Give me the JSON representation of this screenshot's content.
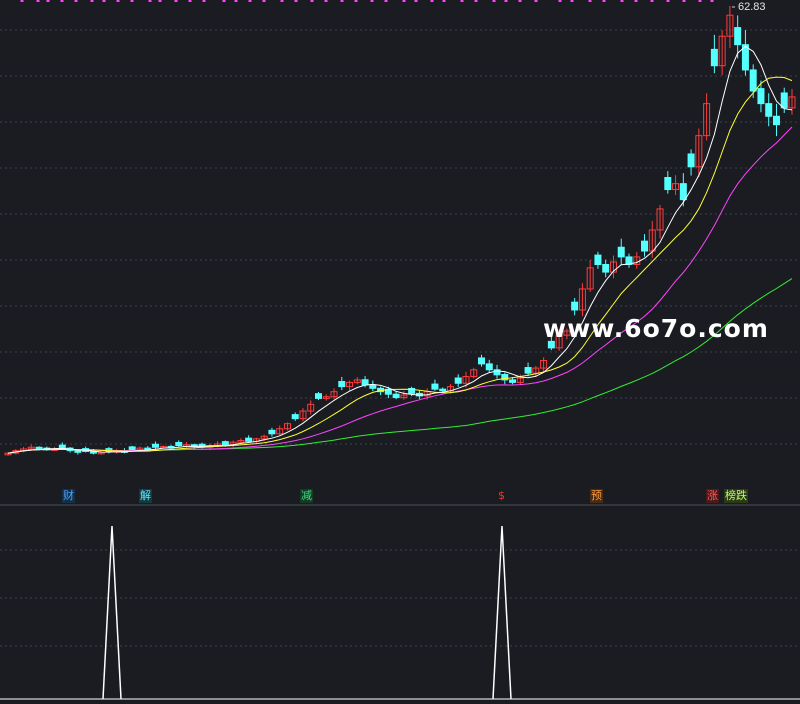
{
  "watermark": "www.6o7o.com",
  "peak_label": "62.83",
  "markers": [
    {
      "text": "财",
      "color": "#4aa3ff",
      "bg": "#123048"
    },
    {
      "text": "解",
      "color": "#66e0ff",
      "bg": "#0f3c3f"
    },
    {
      "text": "减",
      "color": "#3ddc84",
      "bg": "#143a24"
    },
    {
      "text": "$",
      "color": "#ff3030",
      "bg": ""
    },
    {
      "text": "预",
      "color": "#ff9a3c",
      "bg": "#4a2a12"
    },
    {
      "text": "涨",
      "color": "#ff5a5a",
      "bg": "#4a1a1a"
    },
    {
      "text": "榜跌",
      "color": "#b6ff7a",
      "bg": "#2c3a14"
    }
  ],
  "colors": {
    "background": "#1a1c22",
    "grid": "#3a3f4a",
    "up_candle": "#ff3b3b",
    "down_candle": "#54ffff",
    "ma_white": "#ffffff",
    "ma_yellow": "#ffff33",
    "ma_magenta": "#ff44ff",
    "ma_green": "#33ee33",
    "peak_line": "#ffffff",
    "top_marks": "#ff44ff"
  },
  "chart_data": [
    {
      "type": "candlestick",
      "title": "",
      "ylim": [
        0,
        65
      ],
      "grid": "dashed horizontal",
      "peak_price": 62.83,
      "closes": [
        9.5,
        9.8,
        10.0,
        10.2,
        10.1,
        9.9,
        10.0,
        10.1,
        9.8,
        9.6,
        9.7,
        9.5,
        9.6,
        9.7,
        9.8,
        9.6,
        9.9,
        10.1,
        10.0,
        10.2,
        10.3,
        10.1,
        10.4,
        10.5,
        10.3,
        10.2,
        10.4,
        10.6,
        10.5,
        10.8,
        11.0,
        10.9,
        11.2,
        11.5,
        11.8,
        12.4,
        13.0,
        13.6,
        14.5,
        15.3,
        16.0,
        16.2,
        16.8,
        17.4,
        17.9,
        18.2,
        17.6,
        17.2,
        16.8,
        16.5,
        16.1,
        16.4,
        16.6,
        16.3,
        16.8,
        17.1,
        16.9,
        17.4,
        17.8,
        18.6,
        19.4,
        20.1,
        19.4,
        18.8,
        18.2,
        17.9,
        18.4,
        19.0,
        19.6,
        20.5,
        22.0,
        23.5,
        24.0,
        26.5,
        29.0,
        31.5,
        31.9,
        31.0,
        32.2,
        32.8,
        31.9,
        32.8,
        33.5,
        36.0,
        38.5,
        40.8,
        41.5,
        39.6,
        43.5,
        47.2,
        51.0,
        55.5,
        59.0,
        61.5,
        58.0,
        55.0,
        52.5,
        51.0,
        49.5,
        48.5,
        50.5,
        51.8
      ]
    },
    {
      "type": "line",
      "title": "",
      "peaks": [
        {
          "at_bar": 16,
          "value": 1
        },
        {
          "at_bar": 72,
          "value": 1
        }
      ]
    }
  ]
}
